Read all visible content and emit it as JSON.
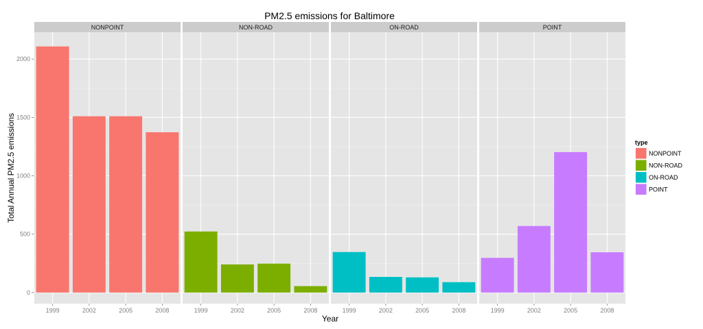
{
  "chart_data": {
    "type": "bar",
    "title": "PM2.5 emissions for Baltimore",
    "xlabel": "Year",
    "ylabel": "Total Annual PM2.5 emissions",
    "categories": [
      "1999",
      "2002",
      "2005",
      "2008"
    ],
    "y_ticks": [
      0,
      500,
      1000,
      1500,
      2000
    ],
    "ylim": [
      -95,
      2230
    ],
    "grid": true,
    "facets": [
      {
        "name": "NONPOINT",
        "color": "#F8766D",
        "values": [
          2108,
          1510,
          1510,
          1373
        ]
      },
      {
        "name": "NON-ROAD",
        "color": "#7CAE00",
        "values": [
          523,
          241,
          248,
          55
        ]
      },
      {
        "name": "ON-ROAD",
        "color": "#00BFC4",
        "values": [
          347,
          134,
          130,
          89
        ]
      },
      {
        "name": "POINT",
        "color": "#C77CFF",
        "values": [
          297,
          570,
          1203,
          345
        ]
      }
    ],
    "legend": {
      "title": "type",
      "position": "right",
      "entries": [
        "NONPOINT",
        "NON-ROAD",
        "ON-ROAD",
        "POINT"
      ]
    }
  }
}
